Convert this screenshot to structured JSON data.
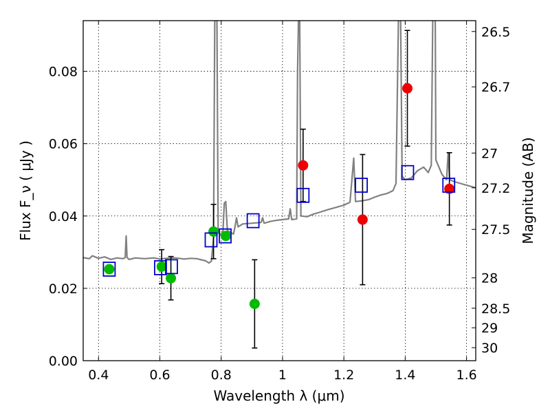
{
  "chart_data": {
    "type": "scatter",
    "xlabel": "Wavelength  λ (μm)",
    "ylabel": "Flux  F_ν  ( μJy )",
    "y2label": "Magnitude (AB)",
    "xlim": [
      0.35,
      1.63
    ],
    "ylim": [
      0.0,
      0.094
    ],
    "grid": true,
    "x_ticks": [
      0.4,
      0.6,
      0.8,
      1.0,
      1.2,
      1.4,
      1.6
    ],
    "x_tick_labels": [
      "0.4",
      "0.6",
      "0.8",
      "1",
      "1.2",
      "1.4",
      "1.6"
    ],
    "y_ticks": [
      0.0,
      0.02,
      0.04,
      0.06,
      0.08
    ],
    "y_tick_labels": [
      "0.00",
      "0.02",
      "0.04",
      "0.06",
      "0.08"
    ],
    "y2_ticks": [
      {
        "label": "26.5",
        "flux": 0.091
      },
      {
        "label": "26.7",
        "flux": 0.0757
      },
      {
        "label": "27",
        "flux": 0.0574
      },
      {
        "label": "27.2",
        "flux": 0.0478
      },
      {
        "label": "27.5",
        "flux": 0.0363
      },
      {
        "label": "28",
        "flux": 0.0229
      },
      {
        "label": "28.5",
        "flux": 0.0145
      },
      {
        "label": "29",
        "flux": 0.0091
      },
      {
        "label": "30",
        "flux": 0.0036
      }
    ],
    "series": [
      {
        "kind": "model-spectrum",
        "color": "#808080",
        "points": [
          [
            0.35,
            0.0285
          ],
          [
            0.37,
            0.0282
          ],
          [
            0.38,
            0.029
          ],
          [
            0.4,
            0.0283
          ],
          [
            0.42,
            0.0287
          ],
          [
            0.44,
            0.028
          ],
          [
            0.46,
            0.0284
          ],
          [
            0.48,
            0.0282
          ],
          [
            0.487,
            0.0285
          ],
          [
            0.49,
            0.0345
          ],
          [
            0.493,
            0.0285
          ],
          [
            0.5,
            0.028
          ],
          [
            0.52,
            0.0284
          ],
          [
            0.55,
            0.0282
          ],
          [
            0.58,
            0.0284
          ],
          [
            0.6,
            0.0281
          ],
          [
            0.62,
            0.0283
          ],
          [
            0.65,
            0.0284
          ],
          [
            0.68,
            0.0281
          ],
          [
            0.7,
            0.0283
          ],
          [
            0.72,
            0.0282
          ],
          [
            0.75,
            0.0276
          ],
          [
            0.76,
            0.027
          ],
          [
            0.768,
            0.0275
          ],
          [
            0.775,
            0.034
          ],
          [
            0.779,
            0.095
          ],
          [
            0.786,
            0.095
          ],
          [
            0.79,
            0.036
          ],
          [
            0.8,
            0.0345
          ],
          [
            0.806,
            0.036
          ],
          [
            0.81,
            0.0435
          ],
          [
            0.815,
            0.044
          ],
          [
            0.82,
            0.036
          ],
          [
            0.83,
            0.0355
          ],
          [
            0.84,
            0.035
          ],
          [
            0.845,
            0.037
          ],
          [
            0.85,
            0.0395
          ],
          [
            0.855,
            0.037
          ],
          [
            0.87,
            0.0378
          ],
          [
            0.9,
            0.038
          ],
          [
            0.93,
            0.0382
          ],
          [
            0.935,
            0.0395
          ],
          [
            0.94,
            0.038
          ],
          [
            0.96,
            0.0385
          ],
          [
            0.98,
            0.0388
          ],
          [
            1.0,
            0.039
          ],
          [
            1.02,
            0.0392
          ],
          [
            1.025,
            0.042
          ],
          [
            1.03,
            0.039
          ],
          [
            1.046,
            0.0392
          ],
          [
            1.049,
            0.08
          ],
          [
            1.052,
            0.095
          ],
          [
            1.056,
            0.095
          ],
          [
            1.06,
            0.04
          ],
          [
            1.08,
            0.0398
          ],
          [
            1.1,
            0.0405
          ],
          [
            1.12,
            0.041
          ],
          [
            1.15,
            0.0418
          ],
          [
            1.18,
            0.0425
          ],
          [
            1.2,
            0.043
          ],
          [
            1.22,
            0.0438
          ],
          [
            1.232,
            0.056
          ],
          [
            1.238,
            0.044
          ],
          [
            1.26,
            0.0442
          ],
          [
            1.28,
            0.0445
          ],
          [
            1.3,
            0.0452
          ],
          [
            1.32,
            0.0458
          ],
          [
            1.34,
            0.0462
          ],
          [
            1.36,
            0.047
          ],
          [
            1.37,
            0.049
          ],
          [
            1.378,
            0.095
          ],
          [
            1.385,
            0.095
          ],
          [
            1.39,
            0.051
          ],
          [
            1.4,
            0.05
          ],
          [
            1.42,
            0.0505
          ],
          [
            1.44,
            0.0525
          ],
          [
            1.46,
            0.0535
          ],
          [
            1.475,
            0.052
          ],
          [
            1.485,
            0.054
          ],
          [
            1.49,
            0.095
          ],
          [
            1.498,
            0.095
          ],
          [
            1.5,
            0.0555
          ],
          [
            1.52,
            0.0515
          ],
          [
            1.535,
            0.05
          ],
          [
            1.54,
            0.0575
          ],
          [
            1.545,
            0.05
          ],
          [
            1.56,
            0.0495
          ],
          [
            1.58,
            0.049
          ],
          [
            1.6,
            0.0485
          ],
          [
            1.63,
            0.0478
          ]
        ]
      },
      {
        "kind": "model-photometry",
        "marker": "open-square",
        "color": "#0000cc",
        "points": [
          [
            0.435,
            0.0253
          ],
          [
            0.602,
            0.0257
          ],
          [
            0.638,
            0.026
          ],
          [
            0.767,
            0.0334
          ],
          [
            0.813,
            0.0345
          ],
          [
            0.904,
            0.0387
          ],
          [
            1.067,
            0.0457
          ],
          [
            1.257,
            0.0485
          ],
          [
            1.408,
            0.052
          ],
          [
            1.542,
            0.0485
          ]
        ]
      },
      {
        "kind": "observed",
        "marker": "filled-circle",
        "color": "#00bb00",
        "points": [
          {
            "x": 0.435,
            "y": 0.0253
          },
          {
            "x": 0.606,
            "y": 0.026,
            "err": 0.0047
          },
          {
            "x": 0.636,
            "y": 0.0228,
            "err": 0.006
          },
          {
            "x": 0.775,
            "y": 0.0357,
            "err": 0.0075
          },
          {
            "x": 0.815,
            "y": 0.0345
          },
          {
            "x": 0.909,
            "y": 0.0157,
            "err": 0.0122
          }
        ]
      },
      {
        "kind": "observed",
        "marker": "filled-circle",
        "color": "#ee0000",
        "points": [
          {
            "x": 1.067,
            "y": 0.054,
            "err": 0.01
          },
          {
            "x": 1.261,
            "y": 0.039,
            "err": 0.018
          },
          {
            "x": 1.407,
            "y": 0.0753,
            "err": 0.016
          },
          {
            "x": 1.544,
            "y": 0.0475,
            "err": 0.01
          }
        ]
      }
    ]
  }
}
